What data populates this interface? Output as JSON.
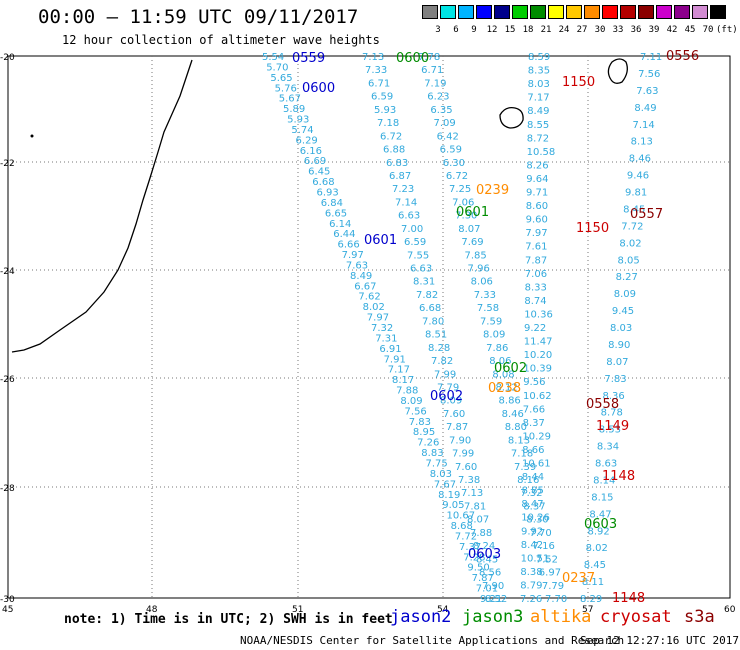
{
  "header": {
    "title": "00:00 – 11:59 UTC 09/11/2017",
    "subtitle": "12 hour collection of altimeter wave heights"
  },
  "scale": {
    "colors": [
      "#808080",
      "#00e5e5",
      "#00b4ff",
      "#0000ff",
      "#00008b",
      "#00cc00",
      "#008c00",
      "#ffff00",
      "#ffc800",
      "#ff8c00",
      "#ff0000",
      "#b40000",
      "#8b0000",
      "#cc00cc",
      "#8c008c",
      "#d28cd2",
      "#000000"
    ],
    "labels": [
      "3",
      "6",
      "9",
      "12",
      "15",
      "18",
      "21",
      "24",
      "27",
      "30",
      "33",
      "36",
      "39",
      "42",
      "45",
      "70",
      "(ft)"
    ]
  },
  "axes": {
    "x_labels": [
      "45",
      "48",
      "51",
      "54",
      "57",
      "60"
    ],
    "y_labels": [
      "-20",
      "-22",
      "-24",
      "-26",
      "-28",
      "-30"
    ]
  },
  "footer": {
    "note": "note: 1) Time is in UTC; 2) SWH is in feet",
    "sats": [
      {
        "name": "jason2",
        "color": "#0000cc"
      },
      {
        "name": "jason3",
        "color": "#008c00"
      },
      {
        "name": "altika",
        "color": "#ff8c00"
      },
      {
        "name": "cryosat",
        "color": "#cc0000"
      },
      {
        "name": "s3a",
        "color": "#8b0000"
      }
    ],
    "credit": "NOAA/NESDIS Center for Satellite Applications and Research",
    "stamp": "Sep 12 12:27:16 UTC 2017"
  },
  "track_labels": [
    {
      "t": "0559",
      "c": "#0000cc"
    },
    {
      "t": "0600",
      "c": "#0000cc"
    },
    {
      "t": "0600",
      "c": "#008c00"
    },
    {
      "t": "0601",
      "c": "#0000cc"
    },
    {
      "t": "0601",
      "c": "#008c00"
    },
    {
      "t": "0602",
      "c": "#0000cc"
    },
    {
      "t": "0602",
      "c": "#008c00"
    },
    {
      "t": "0603",
      "c": "#0000cc"
    },
    {
      "t": "0603",
      "c": "#008c00"
    },
    {
      "t": "0239",
      "c": "#ff8c00"
    },
    {
      "t": "0238",
      "c": "#ff8c00"
    },
    {
      "t": "0237",
      "c": "#ff8c00"
    },
    {
      "t": "1150",
      "c": "#cc0000"
    },
    {
      "t": "1150",
      "c": "#cc0000"
    },
    {
      "t": "1149",
      "c": "#cc0000"
    },
    {
      "t": "1148",
      "c": "#cc0000"
    },
    {
      "t": "1148",
      "c": "#cc0000"
    },
    {
      "t": "0556",
      "c": "#8b0000"
    },
    {
      "t": "0557",
      "c": "#8b0000"
    },
    {
      "t": "0558",
      "c": "#8b0000"
    }
  ],
  "tracks": [
    {
      "c": "#33aadd",
      "v": [
        "5.54",
        "5.70",
        "5.65",
        "5.76",
        "5.67",
        "5.89",
        "5.93",
        "5.74",
        "6.29",
        "6.16",
        "6.69",
        "6.45",
        "6.68",
        "6.93",
        "6.84",
        "6.65",
        "6.14",
        "6.44",
        "6.66",
        "7.97",
        "7.63",
        "8.49",
        "6.67",
        "7.62",
        "8.02",
        "7.97",
        "7.32",
        "7.31",
        "6.91",
        "7.91",
        "7.17",
        "8.17",
        "7.88",
        "8.09",
        "7.56",
        "7.83",
        "8.95",
        "7.26",
        "8.83",
        "7.75",
        "8.03",
        "7.67",
        "8.19",
        "9.05",
        "10.67",
        "8.68",
        "7.72",
        "7.37",
        "7.28",
        "9.50",
        "7.87",
        "7.01",
        "9.21"
      ]
    },
    {
      "c": "#33aadd",
      "v": [
        "7.13",
        "7.33",
        "6.71",
        "6.59",
        "5.93",
        "7.18",
        "6.72",
        "6.88",
        "6.83",
        "6.87",
        "7.23",
        "7.14",
        "6.63",
        "7.00",
        "6.59",
        "7.55",
        "6.63",
        "8.31",
        "7.82",
        "6.68",
        "7.80",
        "8.51",
        "8.28",
        "7.82",
        "7.99",
        "7.79",
        "8.09",
        "7.60",
        "7.87",
        "7.90",
        "7.99",
        "7.60",
        "7.38",
        "7.13",
        "7.81",
        "8.07",
        "7.88",
        "8.24",
        "8.45",
        "8.56",
        "7.90",
        "8.52"
      ]
    },
    {
      "c": "#33aadd",
      "v": [
        "7.78",
        "6.71",
        "7.19",
        "6.23",
        "6.35",
        "7.09",
        "6.42",
        "6.59",
        "6.30",
        "6.72",
        "7.25",
        "7.06",
        "7.30",
        "8.07",
        "7.69",
        "7.85",
        "7.96",
        "8.06",
        "7.33",
        "7.58",
        "7.59",
        "8.09",
        "7.86",
        "8.06",
        "8.08",
        "8.12",
        "8.86",
        "8.46",
        "8.80",
        "8.13",
        "7.18",
        "7.39",
        "8.16",
        "7.32",
        "8.37",
        "8.30",
        "7.70",
        "7.16",
        "7.52",
        "6.97",
        "7.79",
        "7.70"
      ]
    },
    {
      "c": "#33aadd",
      "v": [
        "8.59",
        "8.35",
        "8.03",
        "7.17",
        "8.49",
        "8.55",
        "8.72",
        "10.58",
        "8.26",
        "9.64",
        "9.71",
        "8.60",
        "9.60",
        "7.97",
        "7.61",
        "7.87",
        "7.06",
        "8.33",
        "8.74",
        "10.36",
        "9.22",
        "11.47",
        "10.20",
        "10.39",
        "9.56",
        "10.62",
        "7.66",
        "8.37",
        "10.29",
        "8.66",
        "10.61",
        "8.44",
        "8.85",
        "8.47",
        "10.26",
        "9.92",
        "8.42",
        "10.51",
        "8.38",
        "8.79",
        "7.26"
      ]
    },
    {
      "c": "#33aadd",
      "v": [
        "7.11",
        "7.56",
        "7.63",
        "8.49",
        "7.14",
        "8.13",
        "8.46",
        "9.46",
        "9.81",
        "8.45",
        "7.72",
        "8.02",
        "8.05",
        "8.27",
        "8.09",
        "9.45",
        "8.03",
        "8.90",
        "8.07",
        "7.83",
        "8.36",
        "8.78",
        "8.53",
        "8.34",
        "8.63",
        "8.14",
        "8.15",
        "8.47",
        "8.92",
        "8.02",
        "8.45",
        "8.11",
        "8.29"
      ]
    }
  ]
}
